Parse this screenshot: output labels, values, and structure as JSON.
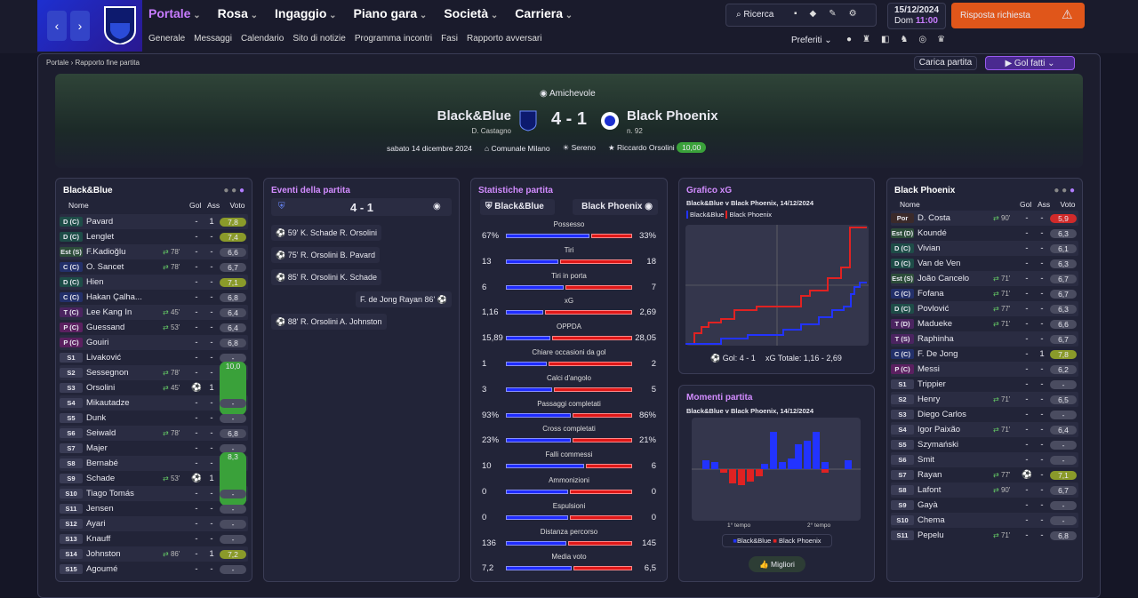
{
  "nav": {
    "tabs": [
      "Portale",
      "Rosa",
      "Ingaggio",
      "Piano gara",
      "Società",
      "Carriera"
    ],
    "subnav": [
      "Generale",
      "Messaggi",
      "Calendario",
      "Sito di notizie",
      "Programma incontri",
      "Fasi",
      "Rapporto avversari"
    ],
    "search": "Ricerca",
    "date": "15/12/2024",
    "day": "Dom",
    "time": "11:00",
    "alert": "Risposta richiesta",
    "favorites": "Preferiti"
  },
  "breadcrumb": [
    "Portale",
    "Rapporto fine partita"
  ],
  "actions": {
    "load": "Carica partita",
    "goals": "Gol fatti"
  },
  "header": {
    "competition": "Amichevole",
    "home": "Black&Blue",
    "home_manager": "D. Castagno",
    "score": "4 - 1",
    "away": "Black Phoenix",
    "away_note": "n. 92",
    "date": "sabato 14 dicembre 2024",
    "stadium": "Comunale Milano",
    "weather": "Sereno",
    "referee": "Riccardo Orsolini",
    "referee_rating": "10,00"
  },
  "home_lineup": {
    "title": "Black&Blue",
    "columns": [
      "Nome",
      "Gol",
      "Ass",
      "Voto"
    ],
    "rows": [
      {
        "pos": "D (C)",
        "name": "Pavard",
        "gol": "-",
        "ass": "1",
        "voto": "7,8"
      },
      {
        "pos": "D (C)",
        "name": "Lenglet",
        "gol": "-",
        "ass": "-",
        "voto": "7,4"
      },
      {
        "pos": "Est (S)",
        "name": "F.Kadioğlu",
        "sub": "78'",
        "gol": "-",
        "ass": "-",
        "voto": "6,6"
      },
      {
        "pos": "C (C)",
        "name": "O. Sancet",
        "sub": "78'",
        "gol": "-",
        "ass": "-",
        "voto": "6,7"
      },
      {
        "pos": "D (C)",
        "name": "Hien",
        "gol": "-",
        "ass": "-",
        "voto": "7,1"
      },
      {
        "pos": "C (C)",
        "name": "Hakan Çalha...",
        "gol": "-",
        "ass": "-",
        "voto": "6,8"
      },
      {
        "pos": "T (C)",
        "name": "Lee Kang In",
        "sub": "45'",
        "gol": "-",
        "ass": "-",
        "voto": "6,4"
      },
      {
        "pos": "P (C)",
        "name": "Guessand",
        "sub": "53'",
        "gol": "-",
        "ass": "-",
        "voto": "6,4"
      },
      {
        "pos": "P (C)",
        "name": "Gouiri",
        "gol": "-",
        "ass": "-",
        "voto": "6,8"
      },
      {
        "pos": "S1",
        "name": "Livaković",
        "gol": "-",
        "ass": "-",
        "voto": "-"
      },
      {
        "pos": "S2",
        "name": "Sessegnon",
        "sub": "78'",
        "gol": "-",
        "ass": "-",
        "voto": "6,8"
      },
      {
        "pos": "S3",
        "name": "Orsolini",
        "sub": "45'",
        "goal": true,
        "ass": "1",
        "voto": "10,0"
      },
      {
        "pos": "S4",
        "name": "Mikautadze",
        "gol": "-",
        "ass": "-",
        "voto": "-"
      },
      {
        "pos": "S5",
        "name": "Dunk",
        "gol": "-",
        "ass": "-",
        "voto": "-"
      },
      {
        "pos": "S6",
        "name": "Seiwald",
        "sub": "78'",
        "gol": "-",
        "ass": "-",
        "voto": "6,8"
      },
      {
        "pos": "S7",
        "name": "Majer",
        "gol": "-",
        "ass": "-",
        "voto": "-"
      },
      {
        "pos": "S8",
        "name": "Bernabé",
        "gol": "-",
        "ass": "-",
        "voto": "-"
      },
      {
        "pos": "S9",
        "name": "Schade",
        "sub": "53'",
        "goal": true,
        "ass": "1",
        "voto": "8,3"
      },
      {
        "pos": "S10",
        "name": "Tiago Tomás",
        "gol": "-",
        "ass": "-",
        "voto": "-"
      },
      {
        "pos": "S11",
        "name": "Jensen",
        "gol": "-",
        "ass": "-",
        "voto": "-"
      },
      {
        "pos": "S12",
        "name": "Ayari",
        "gol": "-",
        "ass": "-",
        "voto": "-"
      },
      {
        "pos": "S13",
        "name": "Knauff",
        "gol": "-",
        "ass": "-",
        "voto": "-"
      },
      {
        "pos": "S14",
        "name": "Johnston",
        "sub": "86'",
        "gol": "-",
        "ass": "1",
        "voto": "7,2"
      },
      {
        "pos": "S15",
        "name": "Agoumé",
        "gol": "-",
        "ass": "-",
        "voto": "-"
      }
    ]
  },
  "events": {
    "title": "Eventi della partita",
    "score": "4 - 1",
    "items": [
      {
        "side": "home",
        "minute": "59'",
        "scorer": "K. Schade",
        "assist": "R. Orsolini"
      },
      {
        "side": "home",
        "minute": "75'",
        "scorer": "R. Orsolini",
        "assist": "B. Pavard"
      },
      {
        "side": "home",
        "minute": "85'",
        "scorer": "R. Orsolini",
        "assist": "K. Schade"
      },
      {
        "side": "away",
        "minute": "86'",
        "scorer": "Rayan",
        "assist": "F. de Jong"
      },
      {
        "side": "home",
        "minute": "88'",
        "scorer": "R. Orsolini",
        "assist": "A. Johnston"
      }
    ]
  },
  "stats": {
    "title": "Statistiche partita",
    "home": "Black&Blue",
    "away": "Black Phoenix",
    "rows": [
      {
        "label": "Possesso",
        "home": "67%",
        "away": "33%"
      },
      {
        "label": "Tiri",
        "home": "13",
        "away": "18"
      },
      {
        "label": "Tiri in porta",
        "home": "6",
        "away": "7"
      },
      {
        "label": "xG",
        "home": "1,16",
        "away": "2,69"
      },
      {
        "label": "OPPDA",
        "home": "15,89",
        "away": "28,05"
      },
      {
        "label": "Chiare occasioni da gol",
        "home": "1",
        "away": "2"
      },
      {
        "label": "Calci d'angolo",
        "home": "3",
        "away": "5"
      },
      {
        "label": "Passaggi completati",
        "home": "93%",
        "away": "86%"
      },
      {
        "label": "Cross completati",
        "home": "23%",
        "away": "21%"
      },
      {
        "label": "Falli commessi",
        "home": "10",
        "away": "6"
      },
      {
        "label": "Ammonizioni",
        "home": "0",
        "away": "0"
      },
      {
        "label": "Espulsioni",
        "home": "0",
        "away": "0"
      },
      {
        "label": "Distanza percorso",
        "home": "136",
        "away": "145"
      },
      {
        "label": "Media voto",
        "home": "7,2",
        "away": "6,5"
      }
    ]
  },
  "xg": {
    "title": "Grafico xG",
    "subtitle": "Black&Blue v Black Phoenix, 14/12/2024",
    "legend": [
      "Black&Blue",
      "Black Phoenix"
    ],
    "goals": "Gol: 4 - 1",
    "xg_total": "xG Totale: 1,16 - 2,69"
  },
  "moments": {
    "title": "Momenti partita",
    "subtitle": "Black&Blue v Black Phoenix, 14/12/2024",
    "halves": [
      "1° tempo",
      "2° tempo"
    ],
    "legend": [
      "Black&Blue",
      "Black Phoenix"
    ],
    "button": "Migliori"
  },
  "away_lineup": {
    "title": "Black Phoenix",
    "columns": [
      "Nome",
      "Gol",
      "Ass",
      "Voto"
    ],
    "rows": [
      {
        "pos": "Por",
        "name": "D. Costa",
        "sub": "90'",
        "gol": "-",
        "ass": "-",
        "voto": "5,9"
      },
      {
        "pos": "Est (D)",
        "name": "Koundé",
        "gol": "-",
        "ass": "-",
        "voto": "6,3"
      },
      {
        "pos": "D (C)",
        "name": "Vivian",
        "gol": "-",
        "ass": "-",
        "voto": "6,1"
      },
      {
        "pos": "D (C)",
        "name": "Van de Ven",
        "gol": "-",
        "ass": "-",
        "voto": "6,3"
      },
      {
        "pos": "Est (S)",
        "name": "João Cancelo",
        "sub": "71'",
        "gol": "-",
        "ass": "-",
        "voto": "6,7"
      },
      {
        "pos": "C (C)",
        "name": "Fofana",
        "sub": "71'",
        "gol": "-",
        "ass": "-",
        "voto": "6,7"
      },
      {
        "pos": "D (C)",
        "name": "Povlović",
        "sub": "77'",
        "gol": "-",
        "ass": "-",
        "voto": "6,3"
      },
      {
        "pos": "T (D)",
        "name": "Madueke",
        "sub": "71'",
        "gol": "-",
        "ass": "-",
        "voto": "6,6"
      },
      {
        "pos": "T (S)",
        "name": "Raphinha",
        "gol": "-",
        "ass": "-",
        "voto": "6,7"
      },
      {
        "pos": "C (C)",
        "name": "F. De Jong",
        "gol": "-",
        "ass": "1",
        "voto": "7,8"
      },
      {
        "pos": "P (C)",
        "name": "Messi",
        "gol": "-",
        "ass": "-",
        "voto": "6,2"
      },
      {
        "pos": "S1",
        "name": "Trippier",
        "gol": "-",
        "ass": "-",
        "voto": "-"
      },
      {
        "pos": "S2",
        "name": "Henry",
        "sub": "71'",
        "gol": "-",
        "ass": "-",
        "voto": "6,5"
      },
      {
        "pos": "S3",
        "name": "Diego Carlos",
        "gol": "-",
        "ass": "-",
        "voto": "-"
      },
      {
        "pos": "S4",
        "name": "Igor Paixão",
        "sub": "71'",
        "gol": "-",
        "ass": "-",
        "voto": "6,4"
      },
      {
        "pos": "S5",
        "name": "Szymański",
        "gol": "-",
        "ass": "-",
        "voto": "-"
      },
      {
        "pos": "S6",
        "name": "Smit",
        "gol": "-",
        "ass": "-",
        "voto": "-"
      },
      {
        "pos": "S7",
        "name": "Rayan",
        "sub": "77'",
        "goal": true,
        "ass": "-",
        "voto": "7,1"
      },
      {
        "pos": "S8",
        "name": "Lafont",
        "sub": "90'",
        "gol": "-",
        "ass": "-",
        "voto": "6,7"
      },
      {
        "pos": "S9",
        "name": "Gayà",
        "gol": "-",
        "ass": "-",
        "voto": "-"
      },
      {
        "pos": "S10",
        "name": "Chema",
        "gol": "-",
        "ass": "-",
        "voto": "-"
      },
      {
        "pos": "S11",
        "name": "Pepelu",
        "sub": "71'",
        "gol": "-",
        "ass": "-",
        "voto": "6,8"
      }
    ]
  }
}
